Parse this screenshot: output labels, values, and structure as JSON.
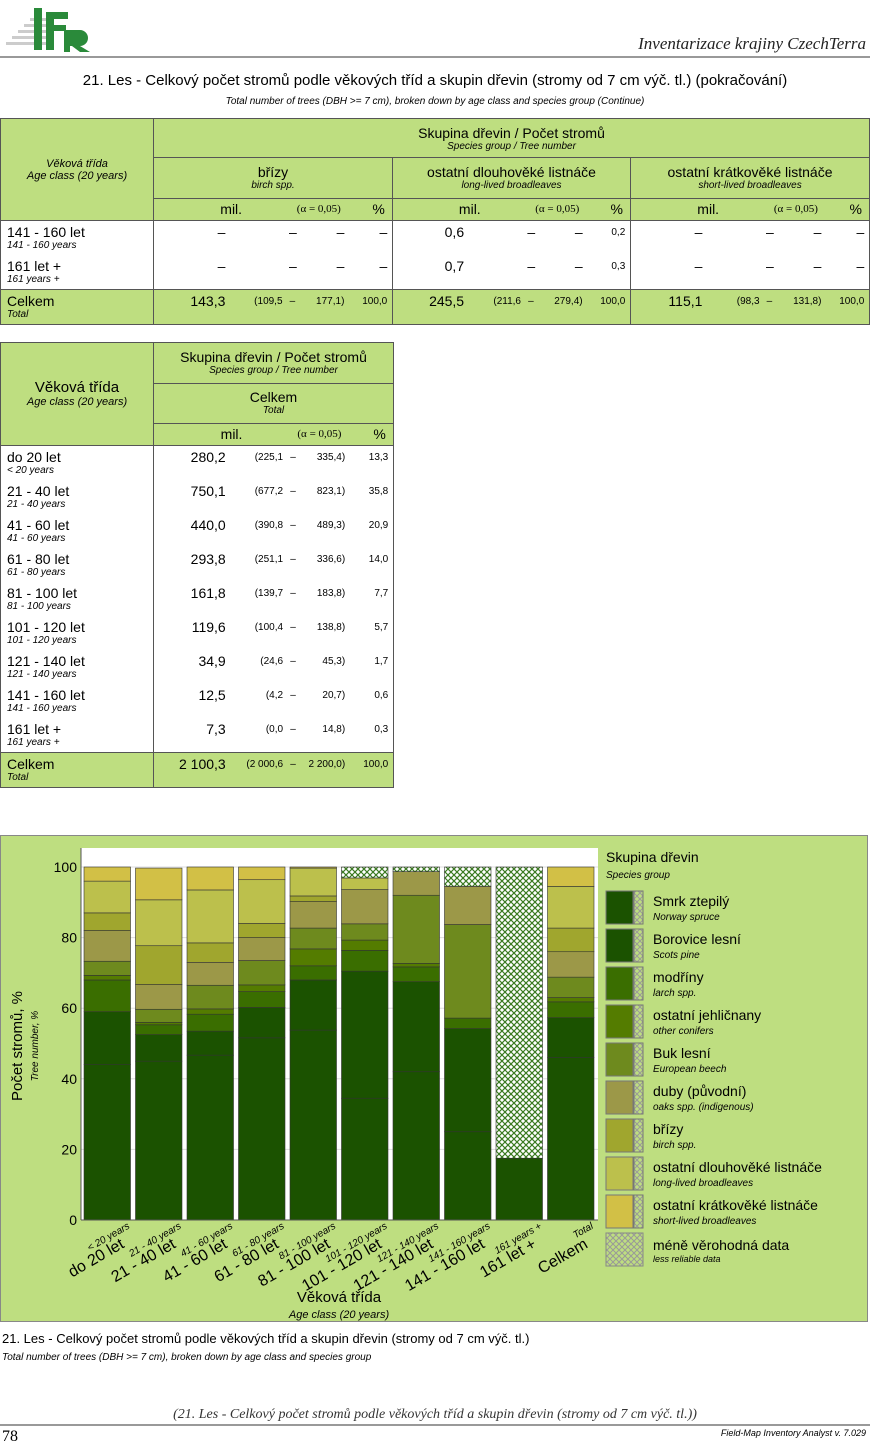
{
  "header": {
    "title": "Inventarizace krajiny CzechTerra",
    "logo_text": "IFER"
  },
  "title": "21. Les - Celkový počet stromů podle věkových tříd a skupin dřevin (stromy od 7 cm výč. tl.) (pokračování)",
  "subtitle": "Total number of trees (DBH >= 7 cm), broken down by age class and species group (Continue)",
  "common": {
    "age_cz": "Věková třída",
    "age_en": "Age class (20 years)",
    "sg_cz": "Skupina dřevin / Počet stromů",
    "sg_en": "Species group / Tree number",
    "mil": "mil.",
    "alpha": "(α = 0,05)",
    "pct": "%",
    "dash": "–"
  },
  "table1": {
    "groups": [
      {
        "cz": "břízy",
        "en": "birch spp."
      },
      {
        "cz": "ostatní dlouhověké listnáče",
        "en": "long-lived broadleaves"
      },
      {
        "cz": "ostatní krátkověké listnáče",
        "en": "short-lived broadleaves"
      }
    ],
    "rows": [
      {
        "cz": "141 - 160 let",
        "en": "141 - 160 years",
        "cells": [
          {
            "mil": "–",
            "lo": "–",
            "hi": "–",
            "pct": "–"
          },
          {
            "mil": "0,6",
            "lo": "–",
            "hi": "–",
            "pct": "0,2"
          },
          {
            "mil": "–",
            "lo": "–",
            "hi": "–",
            "pct": "–"
          }
        ]
      },
      {
        "cz": "161 let +",
        "en": "161 years +",
        "cells": [
          {
            "mil": "–",
            "lo": "–",
            "hi": "–",
            "pct": "–"
          },
          {
            "mil": "0,7",
            "lo": "–",
            "hi": "–",
            "pct": "0,3"
          },
          {
            "mil": "–",
            "lo": "–",
            "hi": "–",
            "pct": "–"
          }
        ]
      },
      {
        "cz": "Celkem",
        "en": "Total",
        "total": true,
        "cells": [
          {
            "mil": "143,3",
            "lo": "(109,5",
            "hi": "177,1)",
            "pct": "100,0"
          },
          {
            "mil": "245,5",
            "lo": "(211,6",
            "hi": "279,4)",
            "pct": "100,0"
          },
          {
            "mil": "115,1",
            "lo": "(98,3",
            "hi": "131,8)",
            "pct": "100,0"
          }
        ]
      }
    ]
  },
  "table2": {
    "group": {
      "cz": "Celkem",
      "en": "Total"
    },
    "rows": [
      {
        "cz": "do 20 let",
        "en": "< 20 years",
        "cells": [
          {
            "mil": "280,2",
            "lo": "(225,1",
            "hi": "335,4)",
            "pct": "13,3"
          }
        ]
      },
      {
        "cz": "21 - 40 let",
        "en": "21 - 40 years",
        "cells": [
          {
            "mil": "750,1",
            "lo": "(677,2",
            "hi": "823,1)",
            "pct": "35,8"
          }
        ]
      },
      {
        "cz": "41 - 60 let",
        "en": "41 - 60 years",
        "cells": [
          {
            "mil": "440,0",
            "lo": "(390,8",
            "hi": "489,3)",
            "pct": "20,9"
          }
        ]
      },
      {
        "cz": "61 - 80 let",
        "en": "61 - 80 years",
        "cells": [
          {
            "mil": "293,8",
            "lo": "(251,1",
            "hi": "336,6)",
            "pct": "14,0"
          }
        ]
      },
      {
        "cz": "81 - 100 let",
        "en": "81 - 100 years",
        "cells": [
          {
            "mil": "161,8",
            "lo": "(139,7",
            "hi": "183,8)",
            "pct": "7,7"
          }
        ]
      },
      {
        "cz": "101 - 120 let",
        "en": "101 - 120 years",
        "cells": [
          {
            "mil": "119,6",
            "lo": "(100,4",
            "hi": "138,8)",
            "pct": "5,7"
          }
        ]
      },
      {
        "cz": "121 - 140 let",
        "en": "121 - 140 years",
        "cells": [
          {
            "mil": "34,9",
            "lo": "(24,6",
            "hi": "45,3)",
            "pct": "1,7"
          }
        ]
      },
      {
        "cz": "141 - 160 let",
        "en": "141 - 160 years",
        "cells": [
          {
            "mil": "12,5",
            "lo": "(4,2",
            "hi": "20,7)",
            "pct": "0,6"
          }
        ]
      },
      {
        "cz": "161 let +",
        "en": "161 years +",
        "cells": [
          {
            "mil": "7,3",
            "lo": "(0,0",
            "hi": "14,8)",
            "pct": "0,3"
          }
        ]
      },
      {
        "cz": "Celkem",
        "en": "Total",
        "total": true,
        "cells": [
          {
            "mil": "2 100,3",
            "lo": "(2 000,6",
            "hi": "2 200,0)",
            "pct": "100,0"
          }
        ]
      }
    ]
  },
  "chart_data": {
    "type": "bar",
    "stacked": true,
    "ylabel": "Počet stromů, %",
    "ylabel_en": "Tree number, %",
    "xlabel": "Věková třída",
    "xlabel_en": "Age class (20 years)",
    "ylim": [
      0,
      100
    ],
    "yticks": [
      0,
      20,
      40,
      60,
      80,
      100
    ],
    "categories": [
      {
        "cz": "do 20 let",
        "en": "< 20 years"
      },
      {
        "cz": "21 - 40 let",
        "en": "21 - 40 years"
      },
      {
        "cz": "41 - 60 let",
        "en": "41 - 60 years"
      },
      {
        "cz": "61 - 80 let",
        "en": "61 - 80 years"
      },
      {
        "cz": "81 - 100 let",
        "en": "81 - 100 years"
      },
      {
        "cz": "101 - 120 let",
        "en": "101 - 120 years"
      },
      {
        "cz": "121 - 140 let",
        "en": "121 - 140 years"
      },
      {
        "cz": "141 - 160 let",
        "en": "141 - 160 years"
      },
      {
        "cz": "161 let +",
        "en": "161 years +"
      },
      {
        "cz": "Celkem",
        "en": "Total"
      }
    ],
    "legend_title": "Skupina dřevin",
    "legend_title_en": "Species group",
    "legend_position": "right",
    "series": [
      {
        "name": "Smrk ztepilý",
        "en": "Norway spruce",
        "color": "#1b5200",
        "values": [
          44,
          45,
          46.7,
          51.6,
          53.8,
          34.5,
          42,
          25,
          17.5,
          46
        ]
      },
      {
        "name": "Borovice lesní",
        "en": "Scots pine",
        "color": "#1b5200",
        "values": [
          15,
          7.5,
          6.8,
          8.6,
          14.2,
          36,
          25.5,
          29.2,
          0,
          11.3
        ]
      },
      {
        "name": "modříny",
        "en": "larch spp.",
        "color": "#3a6e00",
        "values": [
          9,
          2.8,
          4.8,
          4.5,
          4,
          5.9,
          4.2,
          3,
          0,
          4.5
        ]
      },
      {
        "name": "ostatní jehličnany",
        "en": "other conifers",
        "color": "#547c00",
        "values": [
          1.3,
          0.7,
          1.5,
          1.9,
          4.8,
          2.9,
          1,
          0,
          0,
          1.2
        ]
      },
      {
        "name": "Buk lesní",
        "en": "European beech",
        "color": "#6e8a1e",
        "values": [
          4,
          3.7,
          6.7,
          6.9,
          5.9,
          4.6,
          19.3,
          26.5,
          0,
          5.8
        ]
      },
      {
        "name": "duby (původní)",
        "en": "oaks spp. (indigenous)",
        "color": "#9c9848",
        "values": [
          8.7,
          7,
          6.5,
          6.5,
          7.5,
          9.7,
          6.7,
          10.8,
          0,
          7.2
        ]
      },
      {
        "name": "břízy",
        "en": "birch spp.",
        "color": "#a0a62e",
        "values": [
          5,
          11,
          5.5,
          4,
          1.6,
          0,
          0,
          0,
          0,
          6.7
        ]
      },
      {
        "name": "ostatní dlouhověké listnáče",
        "en": "long-lived broadleaves",
        "color": "#bcc04c",
        "values": [
          9,
          13,
          15,
          12.4,
          7.9,
          3.3,
          0,
          0,
          0,
          11.8
        ]
      },
      {
        "name": "ostatní krátkověké listnáče",
        "en": "short-lived broadleaves",
        "color": "#d2c046",
        "values": [
          4,
          9,
          6.5,
          3.6,
          0.3,
          0,
          0,
          0,
          0,
          5.5
        ]
      },
      {
        "name": "méně věrohodná data",
        "en": "less reliable data",
        "color": "hatch",
        "values": [
          0,
          0,
          0,
          0,
          0,
          3.1,
          1.3,
          5.5,
          82.5,
          0
        ]
      }
    ]
  },
  "caption": {
    "cz": "21. Les - Celkový počet stromů podle věkových tříd a skupin dřevin (stromy od 7 cm výč. tl.)",
    "en": "Total number of trees (DBH >= 7 cm), broken down by age class and species group"
  },
  "footer": {
    "title": "(21. Les - Celkový počet stromů podle věkových tříd a skupin dřevin (stromy od 7 cm výč. tl.))",
    "page": "78",
    "software": "Field-Map Inventory Analyst v. 7.029"
  }
}
